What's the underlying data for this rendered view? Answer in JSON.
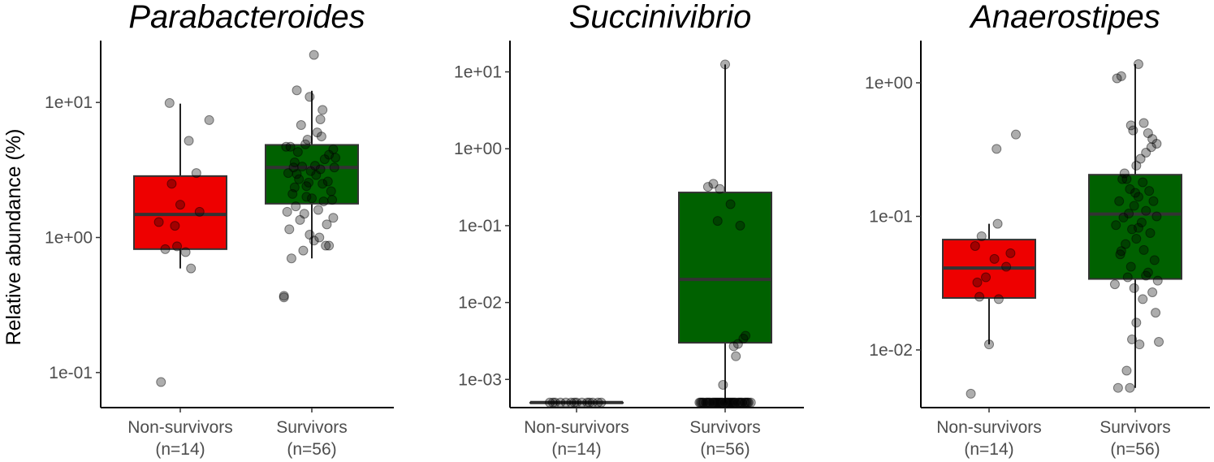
{
  "y_axis_title": "Relative abundance (%)",
  "chart_data": [
    {
      "type": "box",
      "title": "Parabacteroides",
      "ylabel": "Relative abundance (%)",
      "yscale": "log10",
      "ylim": [
        0.055,
        25
      ],
      "yticks": [
        {
          "value": 0.1,
          "label": "1e-01"
        },
        {
          "value": 1,
          "label": "1e+00"
        },
        {
          "value": 10,
          "label": "1e+01"
        }
      ],
      "categories": [
        {
          "line1": "Non-survivors",
          "line2": "(n=14)"
        },
        {
          "line1": "Survivors",
          "line2": "(n=56)"
        }
      ],
      "grid": false,
      "boxes": [
        {
          "group": "Non-survivors",
          "color": "#ee0000",
          "whisker_low": 0.59,
          "q1": 0.82,
          "median": 1.48,
          "q3": 2.85,
          "whisker_high": 9.8
        },
        {
          "group": "Survivors",
          "color": "#006100",
          "whisker_low": 0.7,
          "q1": 1.78,
          "median": 3.3,
          "q3": 4.85,
          "whisker_high": 12.2
        }
      ],
      "points": [
        [
          [
            0.4,
            9.9
          ],
          [
            0.77,
            7.4
          ],
          [
            0.58,
            5.2
          ],
          [
            0.65,
            3.0
          ],
          [
            0.42,
            2.5
          ],
          [
            0.5,
            1.75
          ],
          [
            0.45,
            1.22
          ],
          [
            0.36,
            0.82
          ],
          [
            0.55,
            0.78
          ],
          [
            0.47,
            0.86
          ],
          [
            0.6,
            0.59
          ],
          [
            0.3,
            1.3
          ],
          [
            0.68,
            1.55
          ],
          [
            0.32,
            0.085
          ]
        ],
        [
          [
            0.52,
            22.5
          ],
          [
            0.36,
            12.3
          ],
          [
            0.48,
            11.0
          ],
          [
            0.6,
            8.8
          ],
          [
            0.58,
            7.5
          ],
          [
            0.4,
            6.8
          ],
          [
            0.55,
            6.0
          ],
          [
            0.46,
            5.3
          ],
          [
            0.3,
            4.7
          ],
          [
            0.7,
            4.5
          ],
          [
            0.44,
            4.9
          ],
          [
            0.66,
            4.1
          ],
          [
            0.62,
            3.8
          ],
          [
            0.34,
            3.6
          ],
          [
            0.41,
            3.35
          ],
          [
            0.58,
            3.2
          ],
          [
            0.49,
            3.1
          ],
          [
            0.72,
            3.9
          ],
          [
            0.28,
            3.0
          ],
          [
            0.54,
            2.9
          ],
          [
            0.38,
            2.7
          ],
          [
            0.65,
            2.6
          ],
          [
            0.45,
            2.4
          ],
          [
            0.68,
            2.2
          ],
          [
            0.32,
            2.1
          ],
          [
            0.5,
            1.95
          ],
          [
            0.61,
            1.85
          ],
          [
            0.35,
            1.7
          ],
          [
            0.56,
            1.6
          ],
          [
            0.43,
            1.5
          ],
          [
            0.7,
            1.4
          ],
          [
            0.39,
            1.35
          ],
          [
            0.64,
            1.25
          ],
          [
            0.29,
            1.15
          ],
          [
            0.48,
            1.05
          ],
          [
            0.57,
            1.0
          ],
          [
            0.52,
            0.95
          ],
          [
            0.66,
            0.87
          ],
          [
            0.42,
            0.8
          ],
          [
            0.31,
            0.7
          ],
          [
            0.24,
            0.37
          ],
          [
            0.24,
            0.36
          ],
          [
            0.33,
            3.3
          ],
          [
            0.37,
            4.3
          ],
          [
            0.59,
            5.6
          ],
          [
            0.53,
            3.4
          ],
          [
            0.45,
            2.0
          ],
          [
            0.6,
            2.5
          ],
          [
            0.27,
            1.55
          ],
          [
            0.47,
            2.55
          ],
          [
            0.71,
            3.3
          ],
          [
            0.34,
            2.35
          ],
          [
            0.26,
            4.7
          ],
          [
            0.69,
            1.9
          ],
          [
            0.36,
            2.95
          ],
          [
            0.63,
            0.87
          ]
        ]
      ]
    },
    {
      "type": "box",
      "title": "Succinivibrio",
      "ylabel": "",
      "yscale": "log10",
      "ylim": [
        0.00043,
        20
      ],
      "yticks": [
        {
          "value": 0.001,
          "label": "1e-03"
        },
        {
          "value": 0.01,
          "label": "1e-02"
        },
        {
          "value": 0.1,
          "label": "1e-01"
        },
        {
          "value": 1,
          "label": "1e+00"
        },
        {
          "value": 10,
          "label": "1e+01"
        }
      ],
      "categories": [
        {
          "line1": "Non-survivors",
          "line2": "(n=14)"
        },
        {
          "line1": "Survivors",
          "line2": "(n=56)"
        }
      ],
      "grid": false,
      "boxes": [
        {
          "group": "Non-survivors",
          "color": "#ee0000",
          "whisker_low": 0.0005,
          "q1": 0.0005,
          "median": 0.0005,
          "q3": 0.0005,
          "whisker_high": 0.0005
        },
        {
          "group": "Survivors",
          "color": "#006100",
          "whisker_low": 0.0005,
          "q1": 0.003,
          "median": 0.02,
          "q3": 0.27,
          "whisker_high": 12.5
        }
      ],
      "points": [
        [
          [
            0.25,
            0.0005
          ],
          [
            0.3,
            0.0005
          ],
          [
            0.35,
            0.0005
          ],
          [
            0.4,
            0.0005
          ],
          [
            0.45,
            0.0005
          ],
          [
            0.5,
            0.0005
          ],
          [
            0.55,
            0.0005
          ],
          [
            0.6,
            0.0005
          ],
          [
            0.65,
            0.0005
          ],
          [
            0.7,
            0.0005
          ],
          [
            0.28,
            0.0005
          ],
          [
            0.48,
            0.0005
          ],
          [
            0.62,
            0.0005
          ],
          [
            0.73,
            0.0005
          ]
        ],
        [
          [
            0.5,
            12.5
          ],
          [
            0.39,
            0.35
          ],
          [
            0.34,
            0.32
          ],
          [
            0.45,
            0.3
          ],
          [
            0.55,
            0.19
          ],
          [
            0.43,
            0.115
          ],
          [
            0.64,
            0.1
          ],
          [
            0.69,
            0.0037
          ],
          [
            0.67,
            0.0034
          ],
          [
            0.62,
            0.0029
          ],
          [
            0.58,
            0.0027
          ],
          [
            0.6,
            0.002
          ],
          [
            0.48,
            0.00085
          ],
          [
            0.26,
            0.0005
          ],
          [
            0.29,
            0.0005
          ],
          [
            0.32,
            0.0005
          ],
          [
            0.35,
            0.0005
          ],
          [
            0.38,
            0.0005
          ],
          [
            0.41,
            0.0005
          ],
          [
            0.44,
            0.0005
          ],
          [
            0.47,
            0.0005
          ],
          [
            0.5,
            0.0005
          ],
          [
            0.53,
            0.0005
          ],
          [
            0.56,
            0.0005
          ],
          [
            0.59,
            0.0005
          ],
          [
            0.62,
            0.0005
          ],
          [
            0.65,
            0.0005
          ],
          [
            0.68,
            0.0005
          ],
          [
            0.71,
            0.0005
          ],
          [
            0.74,
            0.0005
          ],
          [
            0.27,
            0.0005
          ],
          [
            0.3,
            0.0005
          ],
          [
            0.33,
            0.0005
          ],
          [
            0.36,
            0.0005
          ],
          [
            0.39,
            0.0005
          ],
          [
            0.42,
            0.0005
          ],
          [
            0.45,
            0.0005
          ],
          [
            0.48,
            0.0005
          ],
          [
            0.51,
            0.0005
          ],
          [
            0.54,
            0.0005
          ],
          [
            0.57,
            0.0005
          ],
          [
            0.6,
            0.0005
          ],
          [
            0.63,
            0.0005
          ],
          [
            0.66,
            0.0005
          ],
          [
            0.69,
            0.0005
          ],
          [
            0.72,
            0.0005
          ],
          [
            0.28,
            0.0005
          ],
          [
            0.34,
            0.0005
          ],
          [
            0.4,
            0.0005
          ],
          [
            0.46,
            0.0005
          ],
          [
            0.52,
            0.0005
          ],
          [
            0.58,
            0.0005
          ],
          [
            0.64,
            0.0005
          ],
          [
            0.7,
            0.0005
          ],
          [
            0.43,
            0.0005
          ],
          [
            0.55,
            0.0005
          ]
        ]
      ]
    },
    {
      "type": "box",
      "title": "Anaerostipes",
      "ylabel": "",
      "yscale": "log10",
      "ylim": [
        0.0037,
        1.8
      ],
      "yticks": [
        {
          "value": 0.01,
          "label": "1e-02"
        },
        {
          "value": 0.1,
          "label": "1e-01"
        },
        {
          "value": 1,
          "label": "1e+00"
        }
      ],
      "categories": [
        {
          "line1": "Non-survivors",
          "line2": "(n=14)"
        },
        {
          "line1": "Survivors",
          "line2": "(n=56)"
        }
      ],
      "grid": false,
      "boxes": [
        {
          "group": "Non-survivors",
          "color": "#ee0000",
          "whisker_low": 0.011,
          "q1": 0.0245,
          "median": 0.041,
          "q3": 0.067,
          "whisker_high": 0.088
        },
        {
          "group": "Survivors",
          "color": "#006100",
          "whisker_low": 0.0052,
          "q1": 0.034,
          "median": 0.104,
          "q3": 0.205,
          "whisker_high": 1.38
        }
      ],
      "points": [
        [
          [
            0.75,
            0.41
          ],
          [
            0.57,
            0.32
          ],
          [
            0.58,
            0.088
          ],
          [
            0.43,
            0.071
          ],
          [
            0.37,
            0.06
          ],
          [
            0.7,
            0.053
          ],
          [
            0.55,
            0.048
          ],
          [
            0.66,
            0.042
          ],
          [
            0.47,
            0.035
          ],
          [
            0.39,
            0.032
          ],
          [
            0.41,
            0.025
          ],
          [
            0.59,
            0.024
          ],
          [
            0.5,
            0.011
          ],
          [
            0.33,
            0.0047
          ]
        ],
        [
          [
            0.53,
            1.38
          ],
          [
            0.37,
            1.12
          ],
          [
            0.33,
            1.08
          ],
          [
            0.46,
            0.48
          ],
          [
            0.58,
            0.5
          ],
          [
            0.48,
            0.44
          ],
          [
            0.62,
            0.42
          ],
          [
            0.66,
            0.38
          ],
          [
            0.7,
            0.35
          ],
          [
            0.6,
            0.3
          ],
          [
            0.55,
            0.27
          ],
          [
            0.51,
            0.24
          ],
          [
            0.42,
            0.19
          ],
          [
            0.38,
            0.19
          ],
          [
            0.57,
            0.18
          ],
          [
            0.45,
            0.16
          ],
          [
            0.63,
            0.155
          ],
          [
            0.53,
            0.14
          ],
          [
            0.35,
            0.13
          ],
          [
            0.67,
            0.13
          ],
          [
            0.49,
            0.12
          ],
          [
            0.6,
            0.11
          ],
          [
            0.44,
            0.105
          ],
          [
            0.7,
            0.1
          ],
          [
            0.39,
            0.098
          ],
          [
            0.56,
            0.09
          ],
          [
            0.32,
            0.086
          ],
          [
            0.47,
            0.08
          ],
          [
            0.64,
            0.075
          ],
          [
            0.51,
            0.068
          ],
          [
            0.41,
            0.062
          ],
          [
            0.58,
            0.056
          ],
          [
            0.36,
            0.052
          ],
          [
            0.68,
            0.047
          ],
          [
            0.46,
            0.042
          ],
          [
            0.62,
            0.038
          ],
          [
            0.43,
            0.035
          ],
          [
            0.71,
            0.033
          ],
          [
            0.31,
            0.031
          ],
          [
            0.49,
            0.029
          ],
          [
            0.66,
            0.027
          ],
          [
            0.57,
            0.024
          ],
          [
            0.69,
            0.019
          ],
          [
            0.51,
            0.016
          ],
          [
            0.47,
            0.012
          ],
          [
            0.54,
            0.011
          ],
          [
            0.72,
            0.0115
          ],
          [
            0.42,
            0.007
          ],
          [
            0.34,
            0.0052
          ],
          [
            0.45,
            0.0052
          ],
          [
            0.5,
            0.15
          ],
          [
            0.4,
            0.21
          ],
          [
            0.65,
            0.33
          ],
          [
            0.6,
            0.036
          ],
          [
            0.37,
            0.055
          ],
          [
            0.53,
            0.082
          ]
        ]
      ]
    }
  ]
}
